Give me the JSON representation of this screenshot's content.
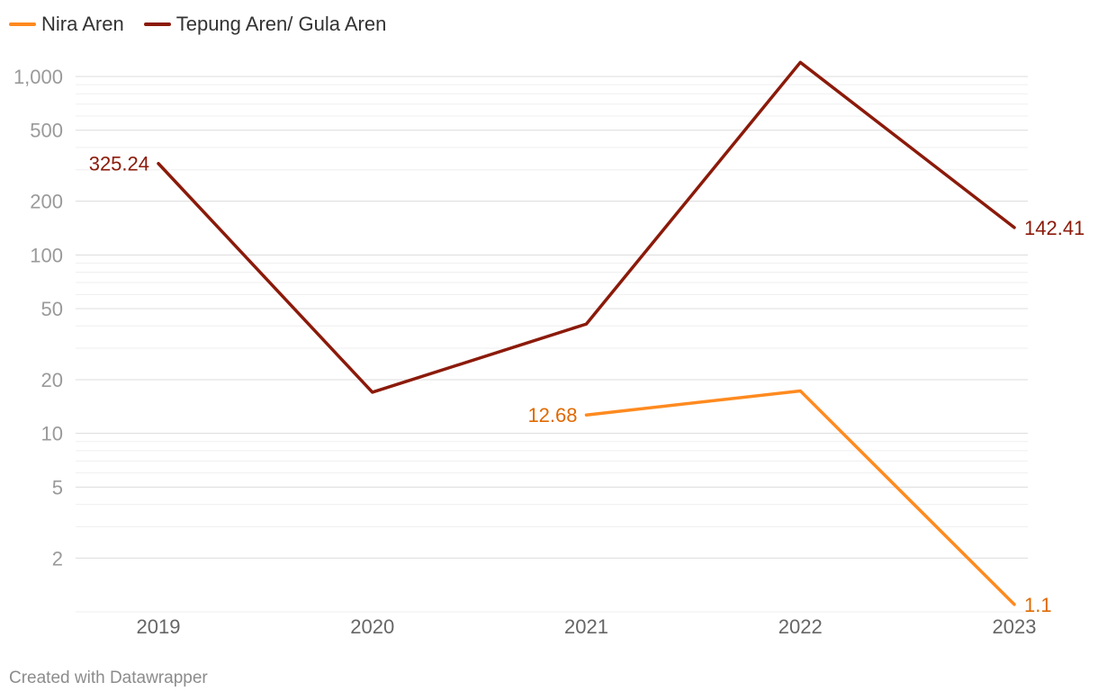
{
  "chart_data": {
    "type": "line",
    "title": "",
    "xlabel": "",
    "ylabel": "",
    "y_scale": "log",
    "ylim": [
      1,
      1200
    ],
    "categories": [
      "2019",
      "2020",
      "2021",
      "2022",
      "2023"
    ],
    "y_ticks": [
      2,
      5,
      10,
      20,
      50,
      100,
      200,
      500,
      1000
    ],
    "y_tick_labels": [
      "2",
      "5",
      "10",
      "20",
      "50",
      "100",
      "200",
      "500",
      "1,000"
    ],
    "grid": true,
    "legend_position": "top-left",
    "series": [
      {
        "name": "Nira Aren",
        "color": "#ff8a1f",
        "label_color": "#e06a00",
        "values": [
          null,
          null,
          12.68,
          17.3,
          1.1
        ],
        "end_labels": [
          {
            "index": 2,
            "text": "12.68",
            "side": "left"
          },
          {
            "index": 4,
            "text": "1.1",
            "side": "right"
          }
        ]
      },
      {
        "name": "Tepung Aren/ Gula Aren",
        "color": "#8b1a0a",
        "label_color": "#8b1a0a",
        "values": [
          325.24,
          17.0,
          41.0,
          1200,
          142.41
        ],
        "end_labels": [
          {
            "index": 0,
            "text": "325.24",
            "side": "left"
          },
          {
            "index": 4,
            "text": "142.41",
            "side": "right"
          }
        ]
      }
    ]
  },
  "footer": {
    "credit": "Created with Datawrapper"
  }
}
